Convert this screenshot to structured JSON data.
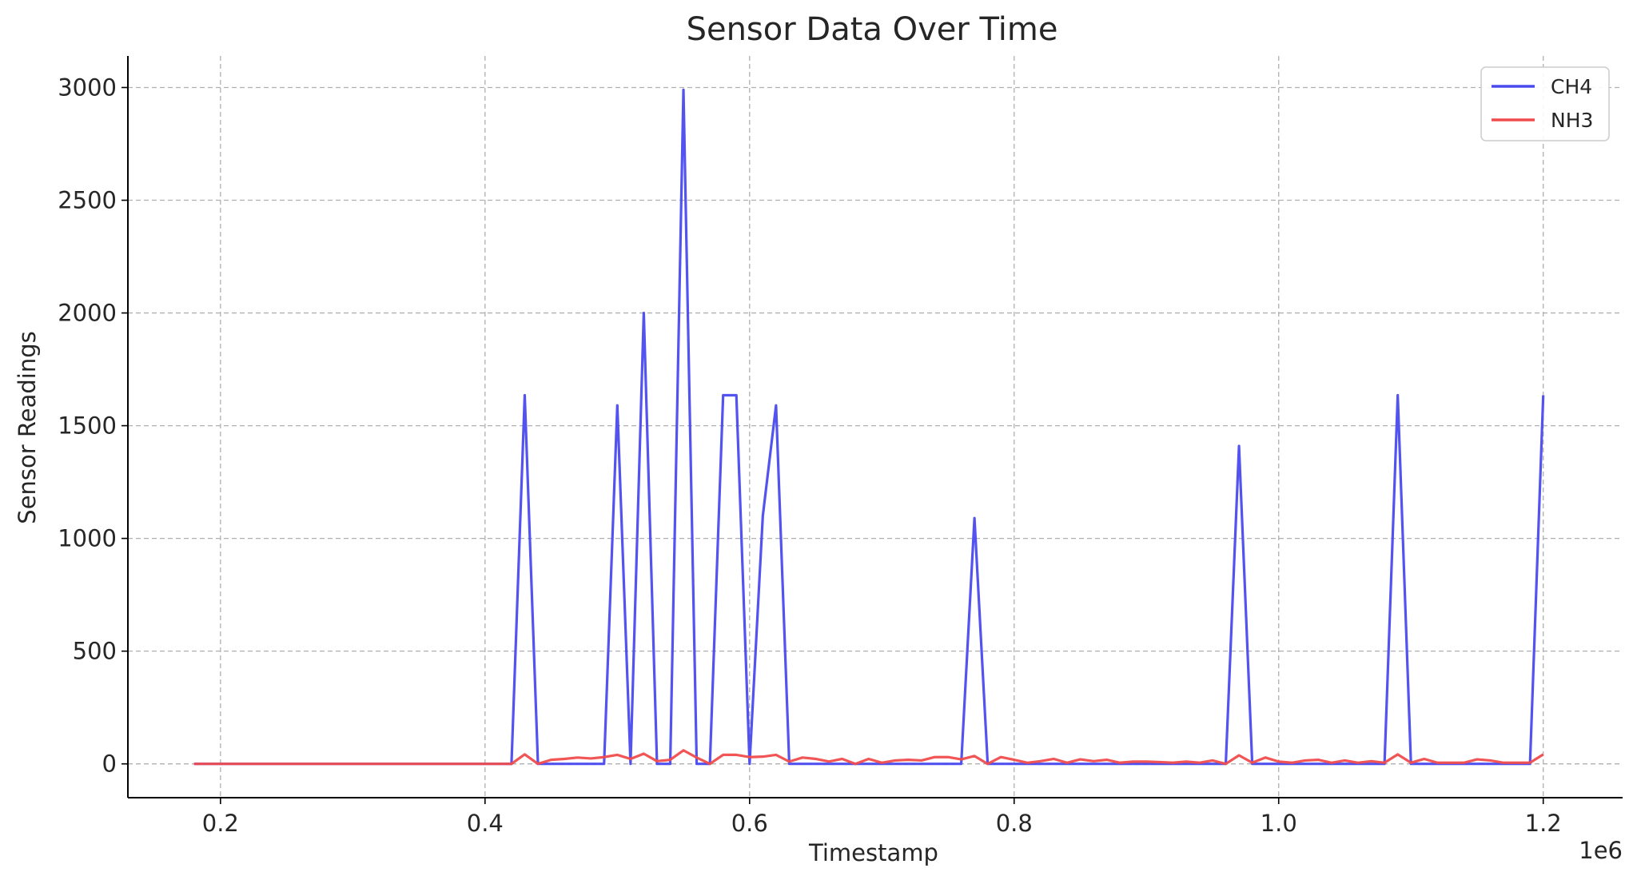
{
  "chart_data": {
    "type": "line",
    "title": "Sensor Data Over Time",
    "xlabel": "Timestamp",
    "ylabel": "Sensor Readings",
    "x_offset_label": "1e6",
    "x_scale": 1000000,
    "xlim": [
      0.13,
      1.26
    ],
    "ylim": [
      -150,
      3140
    ],
    "xticks": [
      0.2,
      0.4,
      0.6,
      0.8,
      1.0,
      1.2
    ],
    "xtick_labels": [
      "0.2",
      "0.4",
      "0.6",
      "0.8",
      "1.0",
      "1.2"
    ],
    "yticks": [
      0,
      500,
      1000,
      1500,
      2000,
      2500,
      3000
    ],
    "ytick_labels": [
      "0",
      "500",
      "1000",
      "1500",
      "2000",
      "2500",
      "3000"
    ],
    "grid": true,
    "legend_position": "top-right",
    "x": [
      0.18,
      0.19,
      0.2,
      0.21,
      0.22,
      0.23,
      0.24,
      0.25,
      0.26,
      0.27,
      0.28,
      0.29,
      0.3,
      0.31,
      0.32,
      0.33,
      0.34,
      0.35,
      0.36,
      0.37,
      0.38,
      0.39,
      0.4,
      0.41,
      0.42,
      0.43,
      0.44,
      0.45,
      0.46,
      0.47,
      0.48,
      0.49,
      0.5,
      0.51,
      0.52,
      0.53,
      0.54,
      0.55,
      0.56,
      0.57,
      0.58,
      0.59,
      0.6,
      0.61,
      0.62,
      0.63,
      0.64,
      0.65,
      0.66,
      0.67,
      0.68,
      0.69,
      0.7,
      0.71,
      0.72,
      0.73,
      0.74,
      0.75,
      0.76,
      0.77,
      0.78,
      0.79,
      0.8,
      0.81,
      0.82,
      0.83,
      0.84,
      0.85,
      0.86,
      0.87,
      0.88,
      0.89,
      0.9,
      0.91,
      0.92,
      0.93,
      0.94,
      0.95,
      0.96,
      0.97,
      0.98,
      0.99,
      1.0,
      1.01,
      1.02,
      1.03,
      1.04,
      1.05,
      1.06,
      1.07,
      1.08,
      1.09,
      1.1,
      1.11,
      1.12,
      1.13,
      1.14,
      1.15,
      1.16,
      1.17,
      1.18,
      1.19,
      1.2
    ],
    "series": [
      {
        "name": "CH4",
        "color": "#4a4aef",
        "values": [
          0,
          0,
          0,
          0,
          0,
          0,
          0,
          0,
          0,
          0,
          0,
          0,
          0,
          0,
          0,
          0,
          0,
          0,
          0,
          0,
          0,
          0,
          0,
          0,
          0,
          1635,
          0,
          0,
          0,
          0,
          0,
          0,
          1590,
          0,
          2000,
          0,
          0,
          2990,
          0,
          0,
          1635,
          1635,
          0,
          1100,
          1590,
          0,
          0,
          0,
          0,
          0,
          0,
          0,
          0,
          0,
          0,
          0,
          0,
          0,
          0,
          1090,
          0,
          0,
          0,
          0,
          0,
          0,
          0,
          0,
          0,
          0,
          0,
          0,
          0,
          0,
          0,
          0,
          0,
          0,
          0,
          1410,
          0,
          0,
          0,
          0,
          0,
          0,
          0,
          0,
          0,
          0,
          0,
          1635,
          0,
          0,
          0,
          0,
          0,
          0,
          0,
          0,
          0,
          0,
          1635
        ]
      },
      {
        "name": "NH3",
        "color": "#f04c4c",
        "values": [
          0,
          0,
          0,
          0,
          0,
          0,
          0,
          0,
          0,
          0,
          0,
          0,
          0,
          0,
          0,
          0,
          0,
          0,
          0,
          0,
          0,
          0,
          0,
          0,
          0,
          42,
          0,
          18,
          22,
          28,
          24,
          30,
          40,
          22,
          45,
          12,
          18,
          60,
          28,
          0,
          40,
          40,
          30,
          32,
          40,
          10,
          28,
          22,
          10,
          22,
          0,
          22,
          5,
          15,
          18,
          15,
          30,
          30,
          20,
          35,
          0,
          30,
          18,
          5,
          12,
          22,
          5,
          20,
          12,
          18,
          5,
          10,
          10,
          8,
          5,
          10,
          5,
          15,
          0,
          38,
          5,
          28,
          10,
          5,
          15,
          18,
          5,
          15,
          5,
          12,
          5,
          42,
          5,
          22,
          5,
          5,
          5,
          20,
          15,
          5,
          5,
          5,
          42
        ]
      }
    ]
  }
}
